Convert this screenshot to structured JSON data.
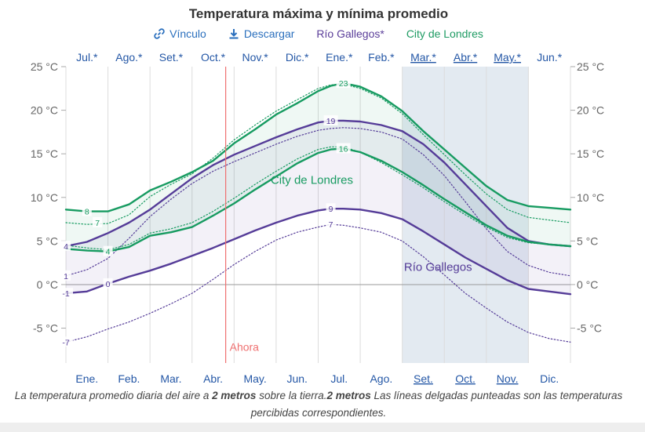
{
  "title": "Temperatura máxima y mínima promedio",
  "toolbar": {
    "link_label": "Vínculo",
    "download_label": "Descargar",
    "series1_label": "Río Gallegos*",
    "series2_label": "City de Londres"
  },
  "caption": {
    "part1": "La temperatura promedio diaria del aire a ",
    "bold1": "2 metros",
    "part2": " sobre la tierra.",
    "bold2": "2 metros",
    "part3": " Las líneas delgadas punteadas son las temperaturas percibidas correspondientes."
  },
  "colors": {
    "rio": "#553c98",
    "london": "#179b61",
    "now": "#ef7070",
    "shade": "#e3eaf1",
    "grid": "#dcdcdc",
    "zero": "#9a9a9a",
    "axis_text": "#666666",
    "month_text": "#2457a6"
  },
  "chart_data": {
    "type": "line",
    "title": "Temperatura máxima y mínima promedio",
    "x_months": [
      "Ene.",
      "Feb.",
      "Mar.",
      "Abr.",
      "May.",
      "Jun.",
      "Jul.",
      "Ago.",
      "Set.",
      "Oct.",
      "Nov.",
      "Dic."
    ],
    "x_months_shifted": [
      "Jul.*",
      "Ago.*",
      "Set.*",
      "Oct.*",
      "Nov.*",
      "Dic.*",
      "Ene.*",
      "Feb.*",
      "Mar.*",
      "Abr.*",
      "May.*",
      "Jun.*"
    ],
    "y_ticks": [
      "25 °C",
      "20 °C",
      "15 °C",
      "10 °C",
      "5 °C",
      "0 °C",
      "-5 °C"
    ],
    "ylim": [
      -9,
      25
    ],
    "now_label": "Ahora",
    "now_month": 3.8,
    "shaded_months": [
      8,
      11
    ],
    "grid": true,
    "series": [
      {
        "name": "Río Gallegos",
        "kind": "max",
        "x": [
          0,
          0.5,
          1,
          1.5,
          2,
          2.5,
          3,
          3.5,
          4,
          4.5,
          5,
          5.5,
          6,
          6.3,
          6.6,
          7,
          7.5,
          8,
          8.5,
          9,
          9.5,
          10,
          10.5,
          11,
          11.5,
          12
        ],
        "y": [
          4.4,
          4.9,
          5.9,
          7.1,
          8.6,
          10.4,
          12.2,
          13.7,
          14.9,
          15.9,
          16.9,
          17.8,
          18.6,
          18.8,
          18.8,
          18.7,
          18.3,
          17.6,
          16.1,
          14.0,
          11.5,
          9.0,
          6.5,
          5.0,
          4.6,
          4.4
        ],
        "labels": [
          {
            "x": 0,
            "text": "4"
          },
          {
            "x": 6.3,
            "text": "19"
          }
        ]
      },
      {
        "name": "Río Gallegos",
        "kind": "min",
        "x": [
          0,
          0.5,
          1,
          1.5,
          2,
          2.5,
          3,
          3.5,
          4,
          4.5,
          5,
          5.5,
          6,
          6.3,
          6.6,
          7,
          7.5,
          8,
          8.5,
          9,
          9.5,
          10,
          10.5,
          11,
          11.5,
          12
        ],
        "y": [
          -1.0,
          -0.8,
          0.1,
          0.9,
          1.6,
          2.4,
          3.3,
          4.2,
          5.2,
          6.2,
          7.1,
          7.9,
          8.5,
          8.7,
          8.7,
          8.6,
          8.2,
          7.5,
          6.1,
          4.6,
          3.1,
          1.8,
          0.5,
          -0.5,
          -0.8,
          -1.1
        ],
        "labels": [
          {
            "x": 0,
            "text": "-1"
          },
          {
            "x": 1,
            "text": "0"
          },
          {
            "x": 6.3,
            "text": "9"
          }
        ]
      },
      {
        "name": "Río Gallegos",
        "kind": "max-perceived",
        "x": [
          0,
          0.5,
          1,
          1.5,
          2,
          2.5,
          3,
          3.5,
          4,
          4.5,
          5,
          5.5,
          6,
          6.3,
          6.6,
          7,
          7.5,
          8,
          8.5,
          9,
          9.5,
          10,
          10.5,
          11,
          11.5,
          12
        ],
        "y": [
          1.0,
          1.7,
          3.0,
          5.3,
          7.8,
          9.8,
          11.6,
          13.0,
          14.1,
          15.1,
          16.1,
          17.0,
          17.7,
          17.9,
          18.0,
          17.9,
          17.5,
          16.7,
          14.9,
          12.5,
          9.5,
          6.4,
          3.8,
          2.2,
          1.4,
          1.0
        ],
        "labels": [
          {
            "x": 0,
            "text": "1"
          }
        ]
      },
      {
        "name": "Río Gallegos",
        "kind": "min-perceived",
        "x": [
          0,
          0.5,
          1,
          1.5,
          2,
          2.5,
          3,
          3.5,
          4,
          4.5,
          5,
          5.5,
          6,
          6.3,
          6.6,
          7,
          7.5,
          8,
          8.5,
          9,
          9.5,
          10,
          10.5,
          11,
          11.5,
          12
        ],
        "y": [
          -6.6,
          -6.0,
          -5.1,
          -4.3,
          -3.3,
          -2.2,
          -1.0,
          0.6,
          2.3,
          3.8,
          5.1,
          6.0,
          6.6,
          6.9,
          6.8,
          6.5,
          6.0,
          5.0,
          3.2,
          1.1,
          -1.0,
          -2.7,
          -4.3,
          -5.5,
          -6.2,
          -6.6
        ],
        "labels": [
          {
            "x": 0,
            "text": "-7"
          },
          {
            "x": 6.3,
            "text": "7"
          }
        ]
      },
      {
        "name": "City de Londres",
        "kind": "max",
        "x": [
          0,
          0.5,
          1,
          1.5,
          2,
          2.5,
          3,
          3.5,
          4,
          4.5,
          5,
          5.5,
          6,
          6.3,
          6.6,
          7,
          7.5,
          8,
          8.5,
          9,
          9.5,
          10,
          10.5,
          11,
          11.5,
          12
        ],
        "y": [
          8.6,
          8.4,
          8.4,
          9.2,
          10.8,
          11.8,
          12.9,
          14.2,
          16.2,
          17.8,
          19.5,
          20.8,
          22.2,
          22.8,
          23.1,
          22.7,
          21.6,
          19.9,
          17.6,
          15.5,
          13.4,
          11.3,
          9.7,
          9.0,
          8.8,
          8.6
        ],
        "labels": [
          {
            "x": 0.5,
            "text": "8"
          },
          {
            "x": 6.6,
            "text": "23"
          }
        ]
      },
      {
        "name": "City de Londres",
        "kind": "min",
        "x": [
          0,
          0.5,
          1,
          1.5,
          2,
          2.5,
          3,
          3.5,
          4,
          4.5,
          5,
          5.5,
          6,
          6.3,
          6.6,
          7,
          7.5,
          8,
          8.5,
          9,
          9.5,
          10,
          10.5,
          11,
          11.5,
          12
        ],
        "y": [
          4.1,
          3.9,
          3.8,
          4.3,
          5.6,
          6.0,
          6.6,
          7.9,
          9.3,
          10.9,
          12.4,
          13.9,
          15.1,
          15.5,
          15.6,
          15.2,
          14.2,
          12.9,
          11.4,
          9.8,
          8.3,
          6.8,
          5.6,
          4.9,
          4.6,
          4.4
        ],
        "labels": [
          {
            "x": 1,
            "text": "4"
          },
          {
            "x": 6.6,
            "text": "16"
          }
        ]
      },
      {
        "name": "City de Londres",
        "kind": "max-perceived",
        "x": [
          0,
          0.5,
          1,
          1.5,
          2,
          2.5,
          3,
          3.5,
          4,
          4.5,
          5,
          5.5,
          6,
          6.3,
          6.6,
          7,
          7.5,
          8,
          8.5,
          9,
          9.5,
          10,
          10.5,
          11,
          11.5,
          12
        ],
        "y": [
          7.1,
          6.9,
          7.0,
          8.0,
          10.1,
          11.5,
          12.7,
          14.5,
          16.6,
          18.3,
          19.9,
          21.2,
          22.5,
          22.9,
          23.0,
          22.5,
          21.4,
          19.6,
          17.2,
          14.9,
          12.6,
          10.4,
          8.6,
          7.7,
          7.4,
          7.1
        ],
        "labels": [
          {
            "x": 0.75,
            "text": "7"
          }
        ]
      },
      {
        "name": "City de Londres",
        "kind": "min-perceived",
        "x": [
          0,
          0.5,
          1,
          1.5,
          2,
          2.5,
          3,
          3.5,
          4,
          4.5,
          5,
          5.5,
          6,
          6.3,
          6.6,
          7,
          7.5,
          8,
          8.5,
          9,
          9.5,
          10,
          10.5,
          11,
          11.5,
          12
        ],
        "y": [
          4.5,
          4.2,
          4.0,
          4.6,
          5.9,
          6.4,
          7.1,
          8.4,
          9.9,
          11.5,
          13.0,
          14.4,
          15.5,
          15.8,
          15.8,
          15.2,
          14.0,
          12.6,
          11.1,
          9.5,
          8.0,
          6.6,
          5.4,
          4.8,
          4.6,
          4.4
        ],
        "labels": []
      }
    ],
    "annotations": [
      {
        "text": "City de Londres",
        "x": 6.0,
        "y": 12.0,
        "series": "london"
      },
      {
        "text": "Río Gallegos",
        "x": 9.0,
        "y": 2.0,
        "series": "rio"
      }
    ]
  }
}
